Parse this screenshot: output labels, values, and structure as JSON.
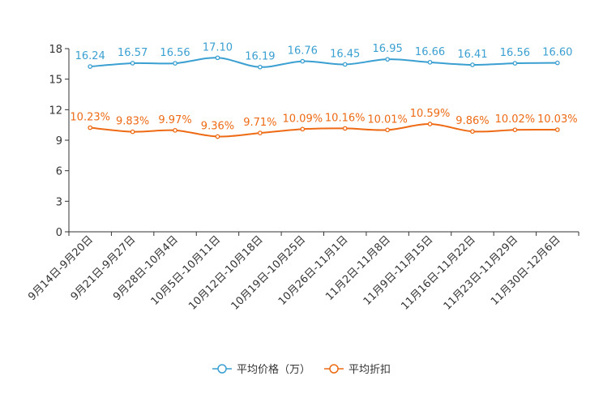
{
  "chart_data": {
    "type": "line",
    "title": "",
    "xlabel": "",
    "ylabel": "",
    "ylim": [
      0,
      18
    ],
    "yticks": [
      0,
      3,
      6,
      9,
      12,
      15,
      18
    ],
    "categories": [
      "9月14日-9月20日",
      "9月21日-9月27日",
      "9月28日-10月4日",
      "10月5日-10月11日",
      "10月12日-10月18日",
      "10月19日-10月25日",
      "10月26日-11月1日",
      "11月2日-11月8日",
      "11月9日-11月15日",
      "11月16日-11月22日",
      "11月23日-11月29日",
      "11月30日-12月6日"
    ],
    "series": [
      {
        "name": "平均价格（万）",
        "color": "#3a9fd1",
        "values": [
          16.24,
          16.57,
          16.56,
          17.1,
          16.19,
          16.76,
          16.45,
          16.95,
          16.66,
          16.41,
          16.56,
          16.6
        ],
        "labels": [
          "16.24",
          "16.57",
          "16.56",
          "17.10",
          "16.19",
          "16.76",
          "16.45",
          "16.95",
          "16.66",
          "16.41",
          "16.56",
          "16.60"
        ]
      },
      {
        "name": "平均折扣",
        "color": "#ee6a14",
        "values": [
          10.23,
          9.83,
          9.97,
          9.36,
          9.71,
          10.09,
          10.16,
          10.01,
          10.59,
          9.86,
          10.02,
          10.03
        ],
        "labels": [
          "10.23%",
          "9.83%",
          "9.97%",
          "9.36%",
          "9.71%",
          "10.09%",
          "10.16%",
          "10.01%",
          "10.59%",
          "9.86%",
          "10.02%",
          "10.03%"
        ]
      }
    ],
    "legend_position": "bottom-center"
  }
}
